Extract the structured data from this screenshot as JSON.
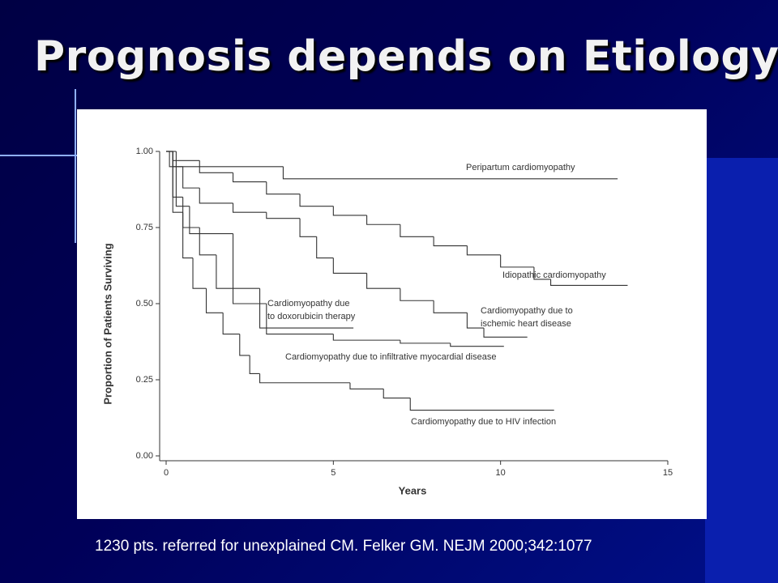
{
  "title": "Prognosis depends on Etiology",
  "caption": "1230 pts. referred for unexplained CM. Felker GM. NEJM 2000;342:1077",
  "chart_data": {
    "type": "line",
    "drawstyle": "steps-post",
    "xlabel": "Years",
    "ylabel": "Proportion of Patients Surviving",
    "xlim": [
      0,
      15
    ],
    "ylim": [
      0,
      1
    ],
    "xticks": [
      0,
      5,
      10,
      15
    ],
    "yticks": [
      {
        "value": 0,
        "label": "0.00"
      },
      {
        "value": 0.25,
        "label": "0.25"
      },
      {
        "value": 0.5,
        "label": "0.50"
      },
      {
        "value": 0.75,
        "label": "0.75"
      },
      {
        "value": 1,
        "label": "1.00"
      }
    ],
    "series": [
      {
        "name": "Peripartum cardiomyopathy",
        "color": "#333333",
        "x": [
          0,
          0.1,
          3.5,
          13.5
        ],
        "values": [
          1.0,
          0.95,
          0.91,
          0.91
        ]
      },
      {
        "name": "Idiopathic cardiomyopathy",
        "color": "#333333",
        "x": [
          0,
          0.2,
          1,
          2,
          3,
          4,
          5,
          6,
          7,
          8,
          9,
          10,
          11,
          11.5,
          13.8
        ],
        "values": [
          1.0,
          0.97,
          0.93,
          0.9,
          0.86,
          0.82,
          0.79,
          0.76,
          0.72,
          0.69,
          0.66,
          0.62,
          0.58,
          0.56,
          0.56
        ]
      },
      {
        "name": "Cardiomyopathy due to\nischemic heart disease",
        "color": "#333333",
        "x": [
          0,
          0.2,
          0.5,
          1,
          2,
          3,
          4,
          4.5,
          5,
          6,
          7,
          8,
          9,
          9.5,
          10.8
        ],
        "values": [
          1.0,
          0.95,
          0.88,
          0.83,
          0.8,
          0.78,
          0.72,
          0.65,
          0.6,
          0.55,
          0.51,
          0.47,
          0.42,
          0.39,
          0.39
        ]
      },
      {
        "name": "Cardiomyopathy due\nto doxorubicin therapy",
        "color": "#333333",
        "x": [
          0,
          0.3,
          0.7,
          2,
          2.8,
          5.6
        ],
        "values": [
          1.0,
          0.82,
          0.73,
          0.55,
          0.42,
          0.42
        ]
      },
      {
        "name": "Cardiomyopathy due to infiltrative myocardial disease",
        "color": "#333333",
        "x": [
          0,
          0.2,
          0.5,
          1,
          1.5,
          2,
          3,
          5,
          7,
          8.5,
          10.1
        ],
        "values": [
          1.0,
          0.85,
          0.75,
          0.66,
          0.55,
          0.5,
          0.4,
          0.38,
          0.37,
          0.36,
          0.36
        ]
      },
      {
        "name": "Cardiomyopathy due to HIV infection",
        "color": "#333333",
        "x": [
          0,
          0.2,
          0.5,
          0.8,
          1.2,
          1.7,
          2.2,
          2.5,
          2.8,
          5.5,
          6.5,
          7.3,
          11.6
        ],
        "values": [
          1.0,
          0.8,
          0.65,
          0.55,
          0.47,
          0.4,
          0.33,
          0.27,
          0.24,
          0.22,
          0.19,
          0.15,
          0.15
        ]
      }
    ]
  }
}
